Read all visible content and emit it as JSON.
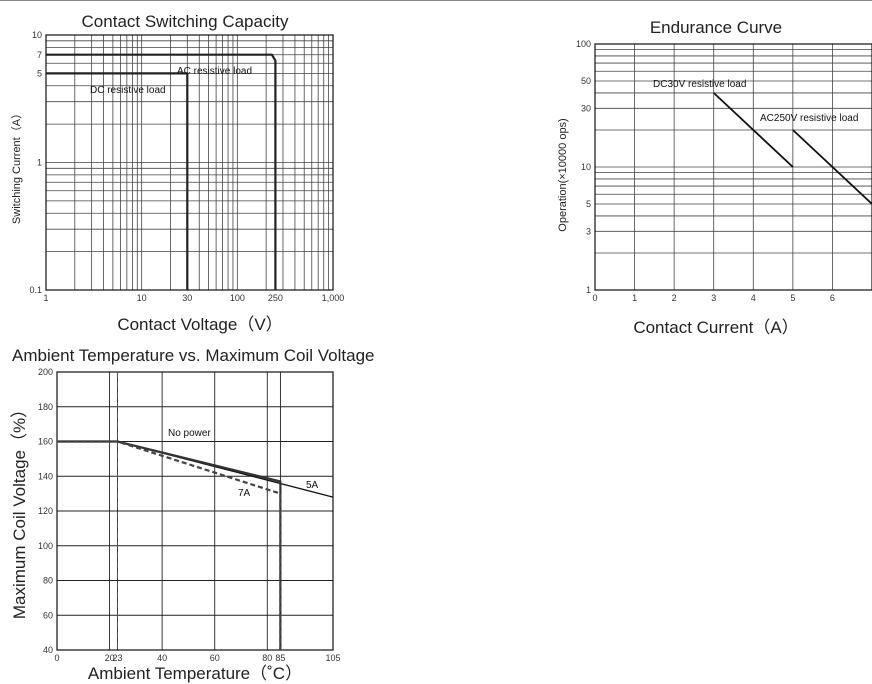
{
  "chart_data": [
    {
      "id": "c1",
      "type": "line",
      "title": "Contact Switching Capacity",
      "xlabel": "Contact Voltage（V）",
      "ylabel": "Switching Current（A）",
      "xscale": "log",
      "yscale": "log",
      "xlim": [
        1,
        1000
      ],
      "ylim": [
        0.1,
        10
      ],
      "grid": true,
      "xticks": [
        {
          "v": 1,
          "label": "1"
        },
        {
          "v": 10,
          "label": "10"
        },
        {
          "v": 30,
          "label": "30"
        },
        {
          "v": 100,
          "label": "100"
        },
        {
          "v": 250,
          "label": "250"
        },
        {
          "v": 1000,
          "label": "1,000"
        }
      ],
      "yticks": [
        {
          "v": 0.1,
          "label": "0.1"
        },
        {
          "v": 1,
          "label": "1"
        },
        {
          "v": 5,
          "label": "5"
        },
        {
          "v": 7,
          "label": "7"
        },
        {
          "v": 10,
          "label": "10"
        }
      ],
      "series": [
        {
          "label": "AC resistive load",
          "x": [
            1,
            230,
            250,
            250
          ],
          "y": [
            7,
            7,
            6.3,
            0.1
          ]
        },
        {
          "label": "DC resistive load",
          "x": [
            1,
            30,
            30
          ],
          "y": [
            5,
            5,
            0.1
          ]
        }
      ]
    },
    {
      "id": "c2",
      "type": "line",
      "title": "Endurance Curve",
      "xlabel": "Contact Current（A）",
      "ylabel": "Operation(×10000 ops)",
      "xscale": "linear",
      "yscale": "log",
      "xlim": [
        0,
        7
      ],
      "ylim": [
        1,
        100
      ],
      "grid": true,
      "xticks": [
        {
          "v": 0,
          "label": "0"
        },
        {
          "v": 1,
          "label": "1"
        },
        {
          "v": 2,
          "label": "2"
        },
        {
          "v": 3,
          "label": "3"
        },
        {
          "v": 4,
          "label": "4"
        },
        {
          "v": 5,
          "label": "5"
        },
        {
          "v": 6,
          "label": "6"
        }
      ],
      "yticks": [
        {
          "v": 1,
          "label": "1"
        },
        {
          "v": 3,
          "label": "3"
        },
        {
          "v": 5,
          "label": "5"
        },
        {
          "v": 10,
          "label": "10"
        },
        {
          "v": 30,
          "label": "30"
        },
        {
          "v": 50,
          "label": "50"
        },
        {
          "v": 100,
          "label": "100"
        }
      ],
      "series": [
        {
          "label": "DC30V resistive load",
          "x": [
            3,
            5
          ],
          "y": [
            40,
            10
          ]
        },
        {
          "label": "AC250V resistive load",
          "x": [
            5,
            7
          ],
          "y": [
            20,
            5
          ]
        }
      ]
    },
    {
      "id": "c3",
      "type": "line",
      "title": "Ambient Temperature vs. Maximum Coil Voltage",
      "xlabel": "Ambient Temperature（˚C）",
      "ylabel": "Maximum Coil Voltage（%）",
      "xscale": "linear",
      "yscale": "linear",
      "xlim": [
        0,
        105
      ],
      "ylim": [
        40,
        200
      ],
      "grid": true,
      "xticks": [
        {
          "v": 0,
          "label": "0"
        },
        {
          "v": 20,
          "label": "20"
        },
        {
          "v": 23,
          "label": "23"
        },
        {
          "v": 40,
          "label": "40"
        },
        {
          "v": 60,
          "label": "60"
        },
        {
          "v": 80,
          "label": "80"
        },
        {
          "v": 85,
          "label": "85"
        },
        {
          "v": 105,
          "label": "105"
        }
      ],
      "yticks": [
        {
          "v": 40,
          "label": "40"
        },
        {
          "v": 60,
          "label": "60"
        },
        {
          "v": 80,
          "label": "80"
        },
        {
          "v": 100,
          "label": "100"
        },
        {
          "v": 120,
          "label": "120"
        },
        {
          "v": 140,
          "label": "140"
        },
        {
          "v": 160,
          "label": "160"
        },
        {
          "v": 180,
          "label": "180"
        },
        {
          "v": 200,
          "label": "200"
        }
      ],
      "series": [
        {
          "label": "No power",
          "x": [
            0,
            23,
            105
          ],
          "y": [
            160,
            160,
            128
          ]
        },
        {
          "label": "5A",
          "x": [
            0,
            23,
            85,
            85
          ],
          "y": [
            160,
            160,
            137,
            40
          ]
        },
        {
          "label": "7A",
          "x": [
            0,
            23,
            85,
            85
          ],
          "y": [
            160,
            160,
            130,
            40
          ]
        }
      ]
    }
  ]
}
